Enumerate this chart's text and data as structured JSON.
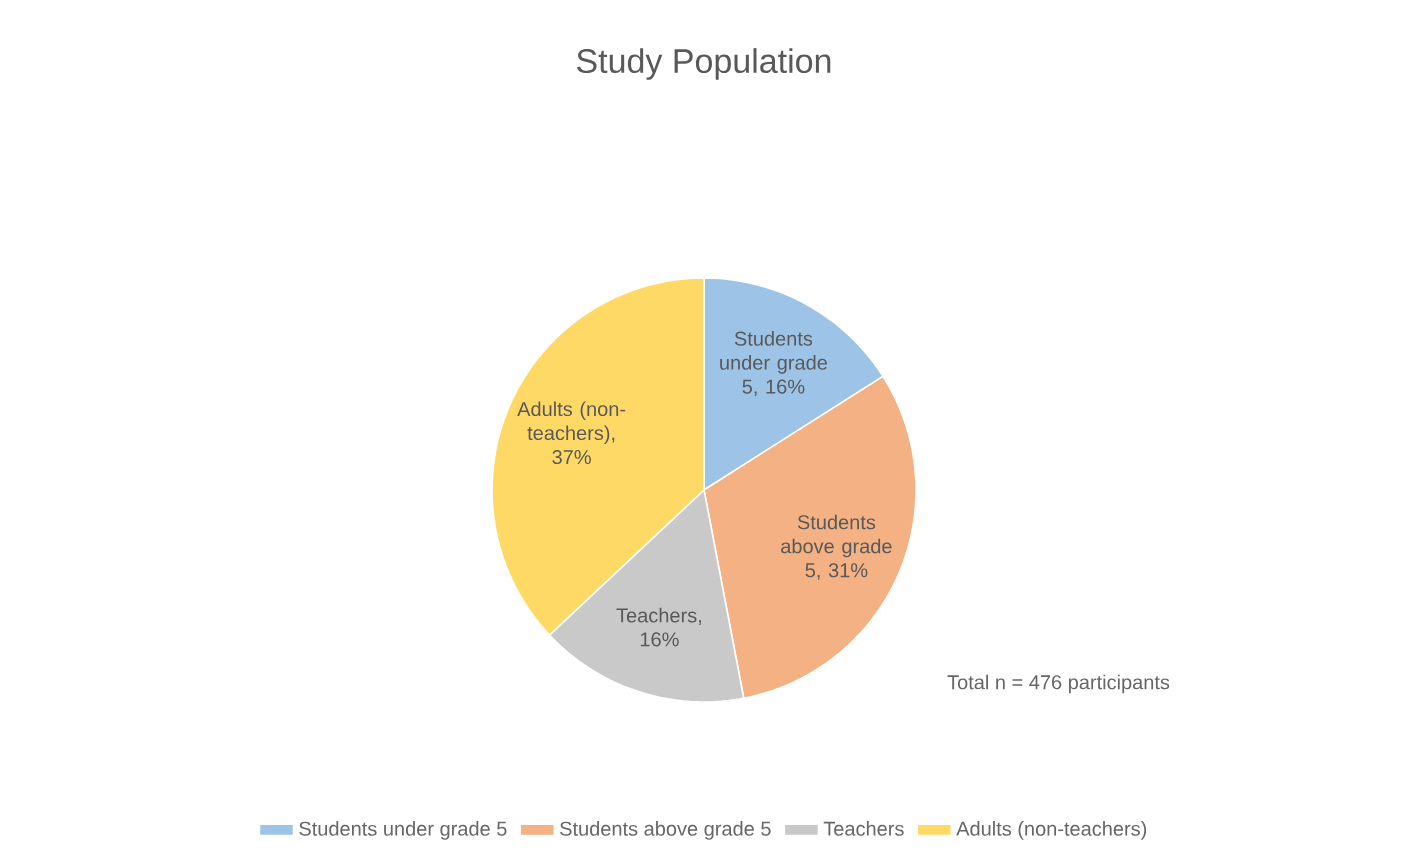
{
  "chart_data": {
    "type": "pie",
    "title": "Study Population",
    "categories": [
      "Students under grade 5",
      "Students above grade 5",
      "Teachers",
      "Adults (non-teachers)"
    ],
    "values": [
      16,
      31,
      16,
      37
    ],
    "value_labels": [
      "Students under grade 5, 16%",
      "Students above grade 5, 31%",
      "Teachers, 16%",
      "Adults (non-teachers), 37%"
    ],
    "colors": [
      "#9dc3e6",
      "#f4b183",
      "#c9c9c9",
      "#ffd966"
    ],
    "legend": "bottom",
    "annotations": [
      "Total n = 476 participants"
    ]
  }
}
